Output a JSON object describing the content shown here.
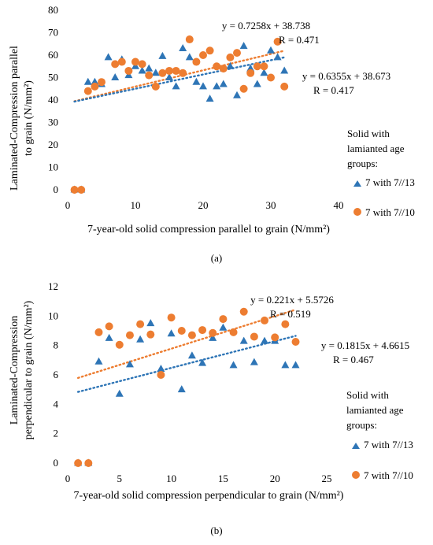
{
  "chart_data": [
    {
      "type": "scatter",
      "panel_label": "(a)",
      "xlabel": "7-year-old solid compression parallel to grain (N/mm²)",
      "ylabel_lines": [
        "Laminated-Compression parallel",
        "to grain (N/mm²)"
      ],
      "xlim": [
        0,
        40
      ],
      "ylim": [
        0,
        80
      ],
      "xticks": [
        0,
        10,
        20,
        30,
        40
      ],
      "yticks": [
        0,
        10,
        20,
        30,
        40,
        50,
        60,
        70,
        80
      ],
      "grid": false,
      "legend": {
        "title_lines": [
          "Solid with",
          "lamianted age",
          "groups:"
        ],
        "placement": "right"
      },
      "series": [
        {
          "name": "7 with 7//13",
          "marker": "triangle",
          "color": "#2E75B6",
          "x": [
            1,
            2,
            3,
            4,
            5,
            6,
            7,
            8,
            9,
            10,
            11,
            12,
            13,
            14,
            15,
            16,
            17,
            18,
            19,
            20,
            21,
            22,
            23,
            24,
            25,
            26,
            27,
            28,
            29,
            30,
            31,
            32
          ],
          "y": [
            0,
            0,
            48,
            48,
            47,
            59,
            50,
            58,
            51,
            55,
            53,
            54,
            52,
            59.5,
            50,
            46,
            63,
            59,
            48,
            46,
            40.5,
            46,
            47,
            55,
            42,
            64,
            54,
            47,
            52,
            62,
            59,
            53
          ]
        },
        {
          "name": "7 with 7//10",
          "marker": "circle",
          "color": "#ED7D31",
          "x": [
            1,
            2,
            3,
            4,
            5,
            7,
            8,
            9,
            10,
            11,
            12,
            13,
            14,
            15,
            16,
            17,
            18,
            19,
            20,
            21,
            22,
            23,
            24,
            25,
            26,
            27,
            28,
            29,
            30,
            31,
            32
          ],
          "y": [
            0,
            0,
            44,
            46,
            48,
            56,
            57,
            53,
            57,
            56,
            51,
            46,
            52,
            53,
            53,
            52,
            67,
            57,
            60,
            62,
            55,
            54,
            59,
            61,
            45,
            52,
            55,
            55,
            50,
            66,
            46
          ]
        }
      ],
      "trendlines": [
        {
          "series": "7 with 7//10",
          "slope": 0.7258,
          "intercept": 38.738,
          "x_range": [
            1,
            32
          ],
          "equation": "y = 0.7258x + 38.738",
          "r_label": "R = 0.471"
        },
        {
          "series": "7 with 7//13",
          "slope": 0.6355,
          "intercept": 38.673,
          "x_range": [
            1,
            32
          ],
          "equation": "y = 0.6355x + 38.673",
          "r_label": "R = 0.417"
        }
      ]
    },
    {
      "type": "scatter",
      "panel_label": "(b)",
      "xlabel": "7-year-old solid compression perpendicular to grain (N/mm²)",
      "ylabel_lines": [
        "Laminated-Compression",
        "perpendicular to grain (N/mm²)"
      ],
      "xlim": [
        0,
        25
      ],
      "ylim": [
        0,
        12
      ],
      "xticks": [
        0,
        5,
        10,
        15,
        20,
        25
      ],
      "yticks": [
        0,
        2,
        4,
        6,
        8,
        10,
        12
      ],
      "grid": false,
      "legend": {
        "title_lines": [
          "Solid with",
          "lamianted age",
          "groups:"
        ],
        "placement": "right"
      },
      "series": [
        {
          "name": "7 with 7//13",
          "marker": "triangle",
          "color": "#2E75B6",
          "x": [
            1,
            2,
            3,
            4,
            5,
            6,
            7,
            8,
            9,
            10,
            11,
            12,
            13,
            14,
            15,
            16,
            17,
            18,
            19,
            20,
            21,
            22
          ],
          "y": [
            0,
            0,
            6.9,
            8.5,
            4.7,
            6.7,
            8.4,
            9.5,
            6.4,
            8.8,
            5.0,
            7.3,
            6.8,
            8.5,
            9.2,
            6.65,
            8.3,
            6.85,
            8.3,
            8.3,
            6.65,
            6.65
          ]
        },
        {
          "name": "7 with 7//10",
          "marker": "circle",
          "color": "#ED7D31",
          "x": [
            1,
            2,
            3,
            4,
            5,
            6,
            7,
            8,
            9,
            10,
            11,
            12,
            13,
            14,
            15,
            16,
            17,
            18,
            19,
            20,
            21,
            22
          ],
          "y": [
            0,
            0,
            8.9,
            9.3,
            8.05,
            8.7,
            9.45,
            8.75,
            6.0,
            9.9,
            9.0,
            8.7,
            9.05,
            8.85,
            9.8,
            8.9,
            10.3,
            8.6,
            9.7,
            8.55,
            9.45,
            8.25
          ]
        }
      ],
      "trendlines": [
        {
          "series": "7 with 7//10",
          "slope": 0.221,
          "intercept": 5.5726,
          "x_range": [
            1,
            22
          ],
          "equation": "y = 0.221x + 5.5726",
          "r_label": "R = 0.519"
        },
        {
          "series": "7 with 7//13",
          "slope": 0.1815,
          "intercept": 4.6615,
          "x_range": [
            1,
            22
          ],
          "equation": "y = 0.1815x + 4.6615",
          "r_label": "R = 0.467"
        }
      ]
    }
  ]
}
